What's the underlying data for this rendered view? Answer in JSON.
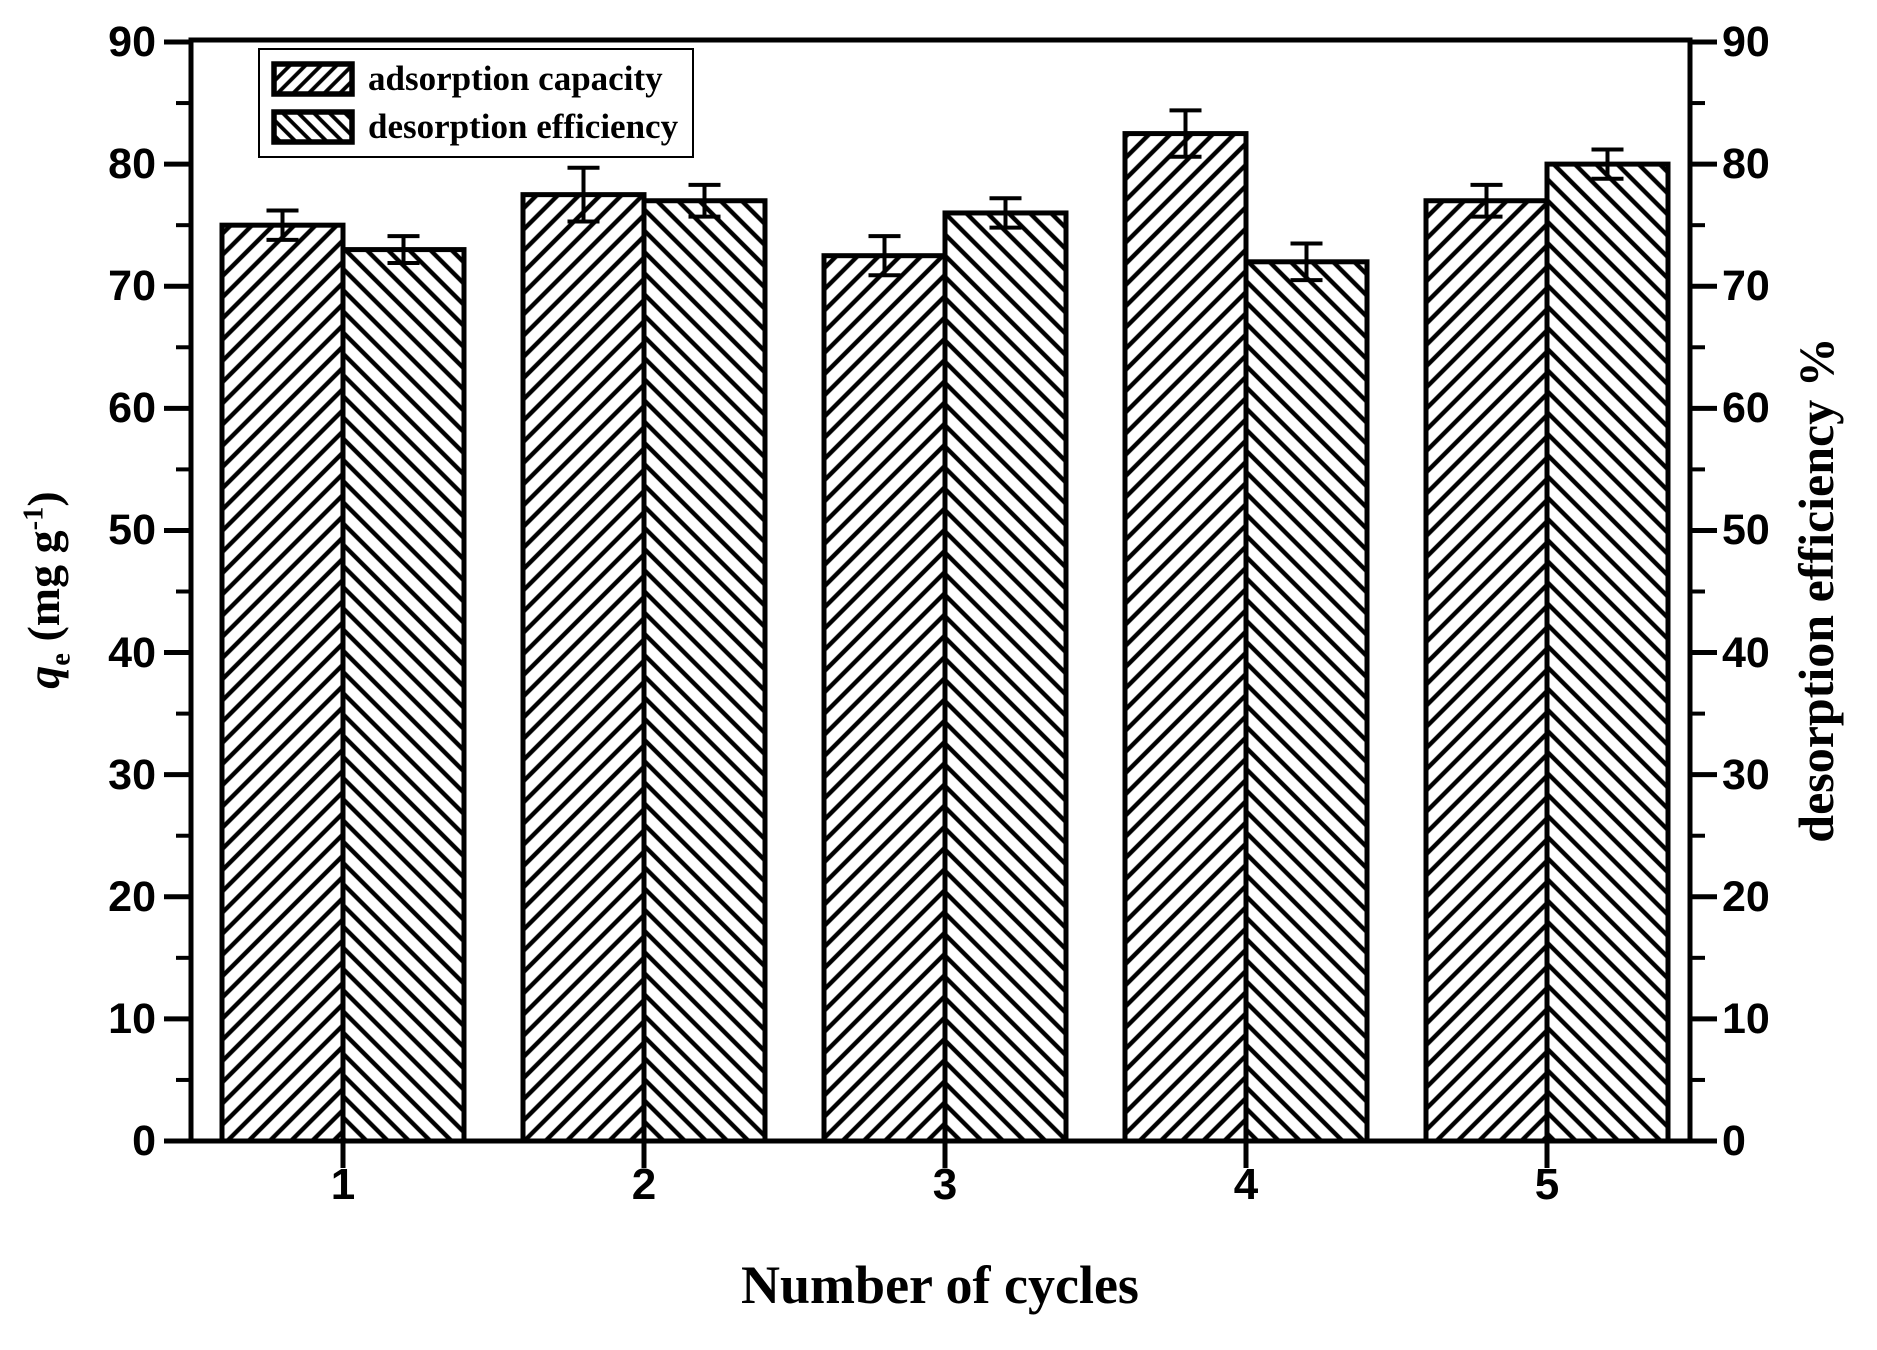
{
  "figure": {
    "background": "#ffffff",
    "ink": "#000000",
    "description": "Reusability bar chart: adsorption capacity and desorption efficiency over 5 cycles"
  },
  "chart_data": {
    "type": "bar",
    "title": "",
    "categories": [
      "1",
      "2",
      "3",
      "4",
      "5"
    ],
    "xlabel": "Number of cycles",
    "ylabel_left": {
      "q": "q",
      "sub": "e",
      "mid": " (mg g",
      "sup": "-1",
      "end": ")"
    },
    "ylabel_left_plain": "qe (mg g-1)",
    "ylabel_right": "desorption efficiency %",
    "ylim_left": [
      0,
      90
    ],
    "ylim_right": [
      0,
      90
    ],
    "yticks": [
      0,
      10,
      20,
      30,
      40,
      50,
      60,
      70,
      80,
      90
    ],
    "ytick_minor_step": 5,
    "grid": false,
    "legend_position": "top-left",
    "bar_style": "white fill, black hatch, thick black outline, error bars with caps",
    "series": [
      {
        "name": "adsorption capacity",
        "axis": "left",
        "hatch": "forward-diagonal",
        "values": [
          75,
          77.5,
          72.5,
          82.5,
          77
        ],
        "errors": [
          1.2,
          2.2,
          1.6,
          1.9,
          1.3
        ]
      },
      {
        "name": "desorption efficiency",
        "axis": "right",
        "hatch": "backward-diagonal",
        "values": [
          73,
          77,
          76,
          72,
          80
        ],
        "errors": [
          1.1,
          1.3,
          1.2,
          1.5,
          1.2
        ]
      }
    ]
  },
  "legend": {
    "items": [
      {
        "label": "adsorption capacity",
        "swatch": "forward-diagonal-hatch"
      },
      {
        "label": "desorption efficiency",
        "swatch": "backward-diagonal-hatch"
      }
    ]
  }
}
